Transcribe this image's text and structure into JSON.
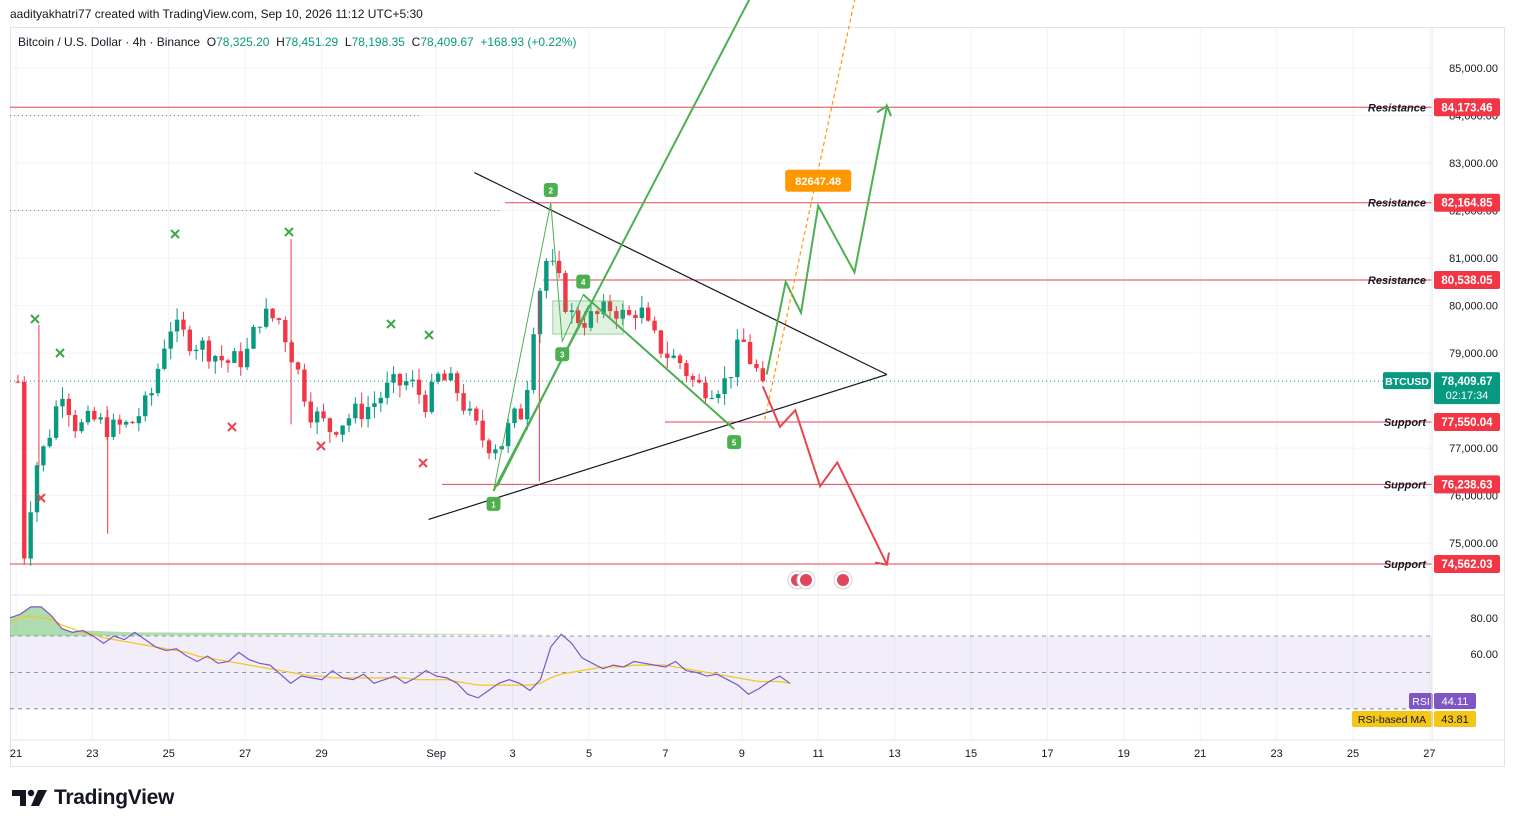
{
  "header": {
    "attribution": "aadityakhatri77 created with TradingView.com, Sep 10, 2026 11:12 UTC+5:30"
  },
  "symbol": {
    "name": "Bitcoin / U.S. Dollar · 4h · Binance",
    "open_label": "O",
    "open": "78,325.20",
    "high_label": "H",
    "high": "78,451.29",
    "low_label": "L",
    "low": "78,198.35",
    "close_label": "C",
    "close": "78,409.67",
    "change": "+168.93 (+0.22%)"
  },
  "brand": {
    "name": "TradingView"
  },
  "colors": {
    "up": "#089981",
    "down": "#f23645",
    "level_line": "#e5464f",
    "green_path": "#4caf50",
    "orange_target": "#ff9800",
    "rsi_line": "#7e57c2",
    "rsi_ma": "#f5c518"
  },
  "chart_data": {
    "type": "candlestick",
    "instrument": "BTCUSD",
    "timeframe": "4h",
    "y_axis": {
      "min": 73800,
      "max": 86300,
      "ticks": [
        {
          "value": 85000,
          "label": "85,000.00"
        },
        {
          "value": 84000,
          "label": "84,000.00"
        },
        {
          "value": 83000,
          "label": "83,000.00"
        },
        {
          "value": 82000,
          "label": "82,000.00"
        },
        {
          "value": 81000,
          "label": "81,000.00"
        },
        {
          "value": 80000,
          "label": "80,000.00"
        },
        {
          "value": 79000,
          "label": "79,000.00"
        },
        {
          "value": 77000,
          "label": "77,000.00"
        },
        {
          "value": 76000,
          "label": "76,000.00"
        },
        {
          "value": 75000,
          "label": "75,000.00"
        }
      ]
    },
    "x_axis": {
      "ticks": [
        {
          "day": 21,
          "label": "21"
        },
        {
          "day": 23,
          "label": "23"
        },
        {
          "day": 25,
          "label": "25"
        },
        {
          "day": 27,
          "label": "27"
        },
        {
          "day": 29,
          "label": "29"
        },
        {
          "day": 32,
          "label": "Sep"
        },
        {
          "day": 34,
          "label": "3"
        },
        {
          "day": 36,
          "label": "5"
        },
        {
          "day": 38,
          "label": "7"
        },
        {
          "day": 40,
          "label": "9"
        },
        {
          "day": 42,
          "label": "11"
        },
        {
          "day": 44,
          "label": "13"
        },
        {
          "day": 46,
          "label": "15"
        },
        {
          "day": 48,
          "label": "17"
        },
        {
          "day": 50,
          "label": "19"
        },
        {
          "day": 52,
          "label": "21"
        },
        {
          "day": 54,
          "label": "23"
        },
        {
          "day": 56,
          "label": "25"
        },
        {
          "day": 58,
          "label": "27"
        }
      ]
    },
    "levels": [
      {
        "kind": "Resistance",
        "value": 84173.46,
        "label": "84,173.46"
      },
      {
        "kind": "Resistance",
        "value": 82164.85,
        "label": "82,164.85"
      },
      {
        "kind": "Resistance",
        "value": 80538.05,
        "label": "80,538.05"
      },
      {
        "kind": "Support",
        "value": 77550.04,
        "label": "77,550.04"
      },
      {
        "kind": "Support",
        "value": 76238.63,
        "label": "76,238.63"
      },
      {
        "kind": "Support",
        "value": 74562.03,
        "label": "74,562.03"
      }
    ],
    "current_price": {
      "ticker": "BTCUSD",
      "value": 78409.67,
      "label": "78,409.67",
      "countdown": "02:17:34"
    },
    "target": {
      "value": 82647.48,
      "label": "82647.48"
    },
    "wave_points": [
      {
        "label": "1",
        "day": 33.5,
        "price": 76100
      },
      {
        "label": "2",
        "day": 35.0,
        "price": 82160
      },
      {
        "label": "3",
        "day": 35.3,
        "price": 79250
      },
      {
        "label": "4",
        "day": 35.85,
        "price": 80230
      },
      {
        "label": "5",
        "day": 39.8,
        "price": 77400
      }
    ],
    "triangle": {
      "upper": [
        {
          "day": 33.0,
          "price": 82800
        },
        {
          "day": 43.8,
          "price": 78550
        }
      ],
      "lower": [
        {
          "day": 31.8,
          "price": 75500
        },
        {
          "day": 43.8,
          "price": 78550
        }
      ]
    },
    "bull_path": [
      {
        "day": 40.65,
        "price": 78550
      },
      {
        "day": 41.15,
        "price": 80500
      },
      {
        "day": 41.55,
        "price": 79850
      },
      {
        "day": 42.0,
        "price": 82100
      },
      {
        "day": 42.95,
        "price": 80700
      },
      {
        "day": 43.8,
        "price": 84200
      },
      {
        "day": 43.9,
        "price": 84000
      }
    ],
    "bull_projection": [
      {
        "day": 40.6,
        "price": 77600
      },
      {
        "day": 43.0,
        "price": 86600
      }
    ],
    "bear_path": [
      {
        "day": 40.55,
        "price": 78300
      },
      {
        "day": 41.0,
        "price": 77450
      },
      {
        "day": 41.4,
        "price": 77800
      },
      {
        "day": 42.05,
        "price": 76200
      },
      {
        "day": 42.5,
        "price": 76700
      },
      {
        "day": 43.8,
        "price": 74550
      }
    ],
    "rsi": {
      "name": "RSI",
      "value_label": "44.11",
      "ma_name": "RSI-based MA",
      "ma_value_label": "43.81",
      "ticks": [
        {
          "value": 80,
          "label": "80.00"
        },
        {
          "value": 60,
          "label": "60.00"
        }
      ],
      "upper_band": 70,
      "lower_band": 30,
      "mid": 50,
      "values": [
        80,
        82,
        86,
        86,
        81,
        74,
        72,
        73,
        70,
        66,
        70,
        68,
        72,
        68,
        64,
        62,
        63,
        59,
        56,
        59,
        55,
        56,
        61,
        57,
        55,
        54,
        49,
        44,
        48,
        47,
        46,
        51,
        47,
        46,
        49,
        44,
        46,
        48,
        44,
        47,
        51,
        48,
        47,
        44,
        38,
        36,
        40,
        44,
        46,
        44,
        40,
        46,
        64,
        71,
        66,
        58,
        55,
        52,
        54,
        53,
        56,
        55,
        54,
        53,
        56,
        51,
        50,
        48,
        49,
        46,
        43,
        38,
        41,
        45,
        48,
        44
      ],
      "ma_values": [
        78,
        80,
        81,
        80,
        79,
        76,
        74,
        72,
        71,
        69,
        68,
        67,
        66,
        65,
        64,
        63,
        62,
        61,
        59,
        58,
        57,
        56,
        55,
        54,
        53,
        52,
        51,
        50,
        49,
        48,
        48,
        47,
        47,
        47,
        47,
        47,
        47,
        47,
        47,
        46,
        46,
        46,
        46,
        45,
        44,
        43,
        43,
        43,
        43,
        43,
        43,
        44,
        47,
        49,
        50,
        51,
        52,
        53,
        53,
        53,
        54,
        54,
        54,
        54,
        53,
        52,
        51,
        50,
        49,
        48,
        47,
        46,
        45,
        45,
        45,
        44
      ]
    }
  }
}
